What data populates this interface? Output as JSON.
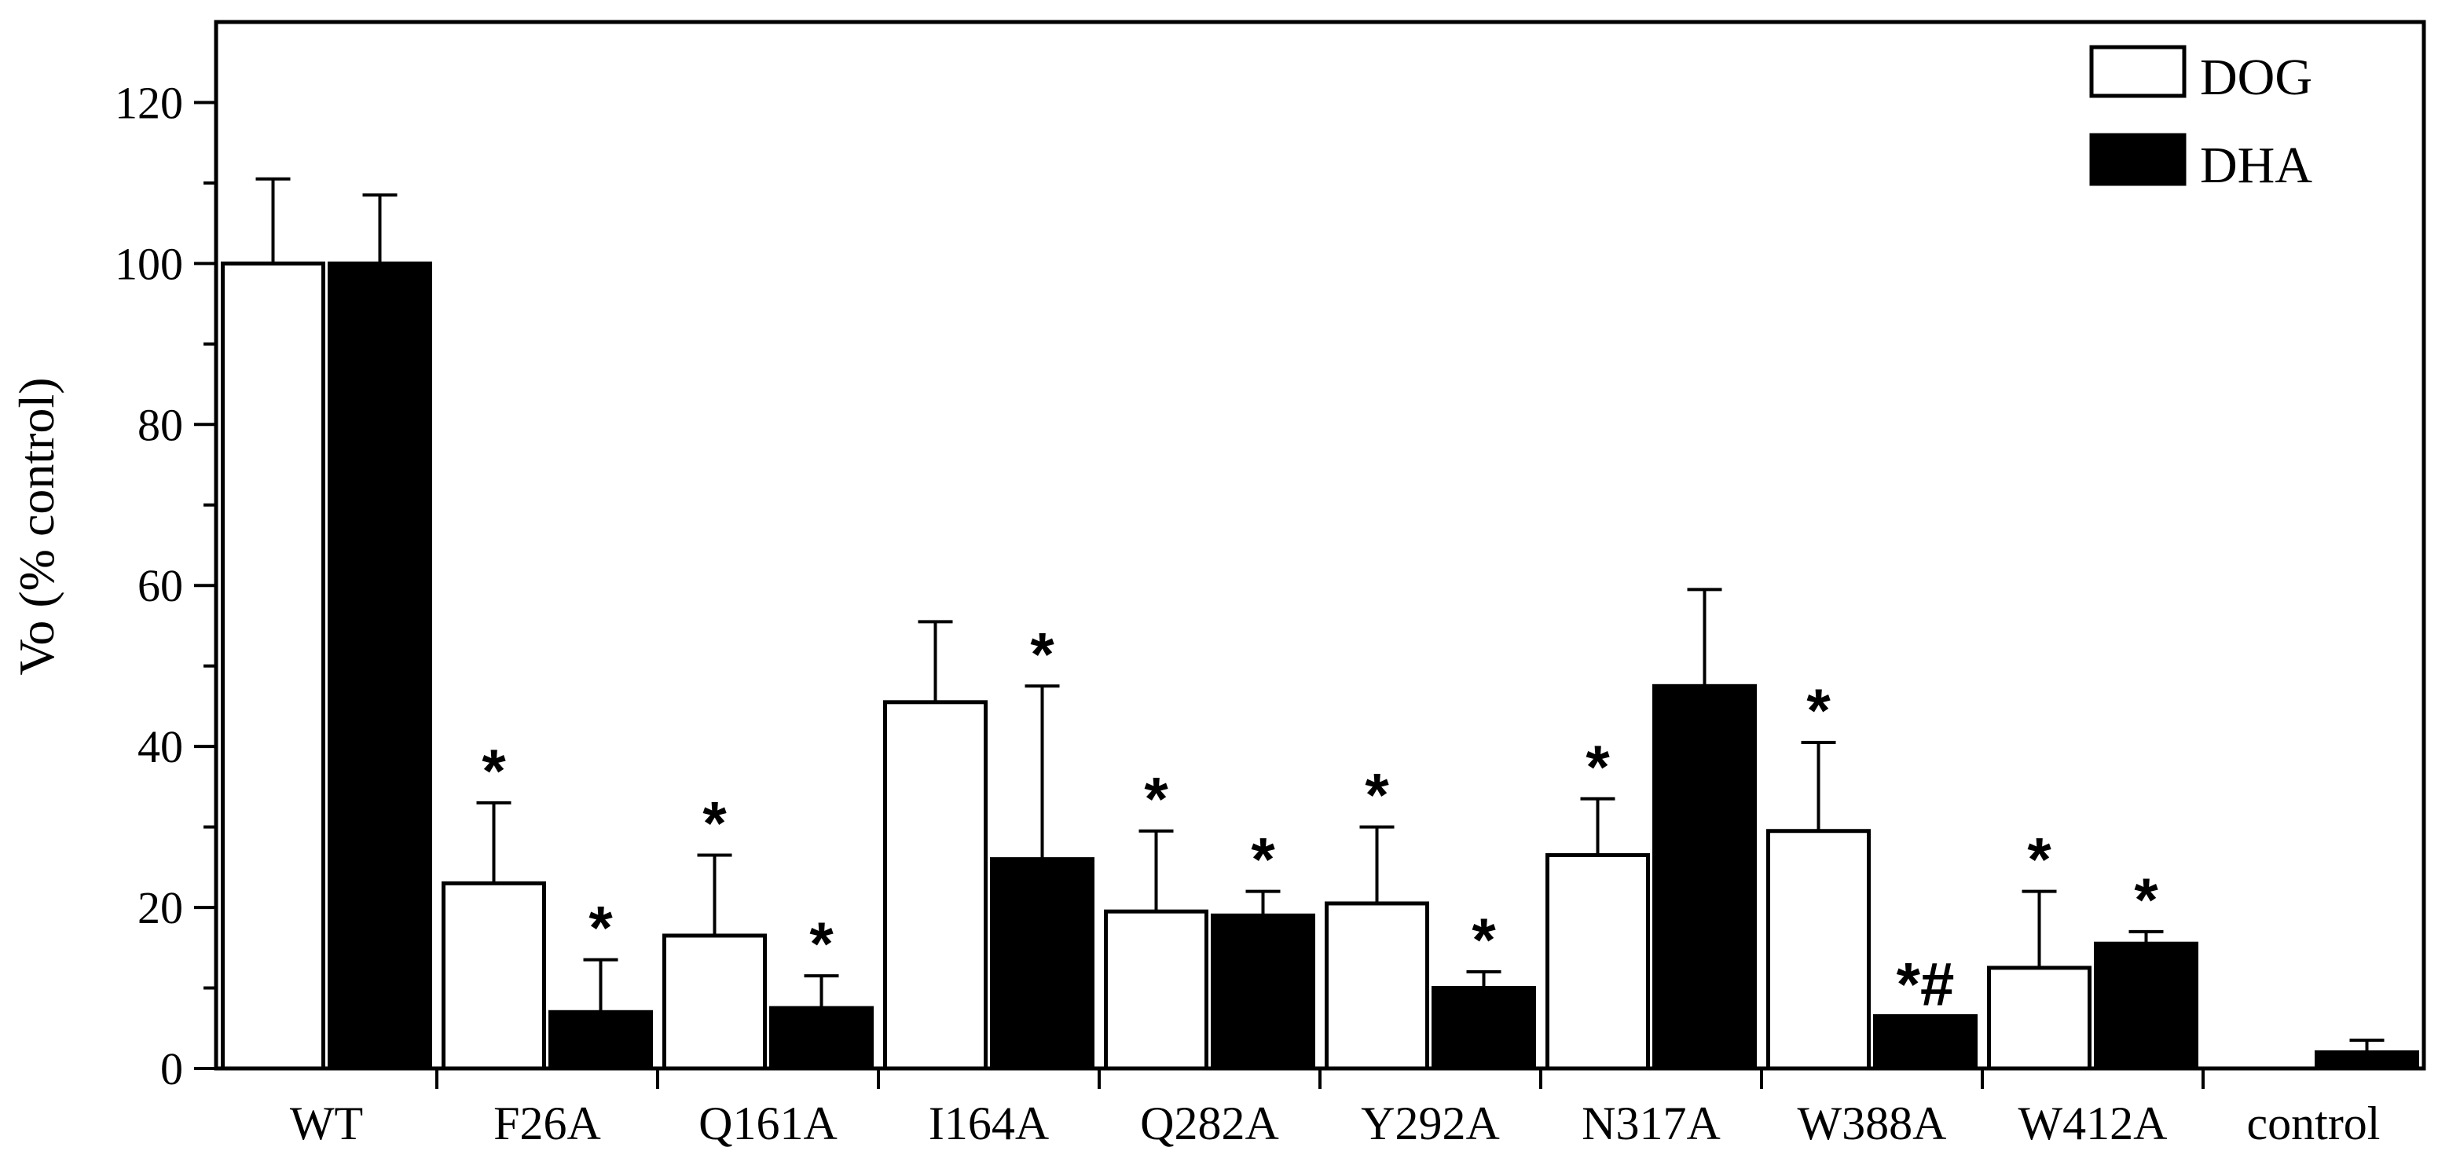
{
  "chart_data": {
    "type": "bar",
    "ylabel": "Vo (% control)",
    "xlabel": "",
    "ylim": [
      0,
      130
    ],
    "yticks": [
      0,
      20,
      40,
      60,
      80,
      100,
      120
    ],
    "yticks_minor": [
      10,
      30,
      50,
      70,
      90,
      110
    ],
    "categories": [
      "WT",
      "F26A",
      "Q161A",
      "I164A",
      "Q282A",
      "Y292A",
      "N317A",
      "W388A",
      "W412A",
      "control"
    ],
    "series": [
      {
        "name": "DOG",
        "fill": "#ffffff",
        "values": [
          100,
          23,
          16.5,
          45.5,
          19.5,
          20.5,
          26.5,
          29.5,
          12.5,
          null
        ],
        "errors": [
          10.5,
          10,
          10,
          10,
          10,
          9.5,
          7,
          11,
          9.5,
          null
        ],
        "annotations": [
          "",
          "*",
          "*",
          "",
          "*",
          "*",
          "*",
          "*",
          "*",
          ""
        ]
      },
      {
        "name": "DHA",
        "fill": "#000000",
        "values": [
          100,
          7,
          7.5,
          26,
          19,
          10,
          47.5,
          6.5,
          15.5,
          2
        ],
        "errors": [
          8.5,
          6.5,
          4,
          21.5,
          3,
          2,
          12,
          0,
          1.5,
          1.5
        ],
        "annotations": [
          "",
          "*",
          "*",
          "*",
          "*",
          "*",
          "",
          "*#",
          "*",
          ""
        ]
      }
    ],
    "legend": {
      "position": "top-right",
      "entries": [
        "DOG",
        "DHA"
      ]
    }
  }
}
